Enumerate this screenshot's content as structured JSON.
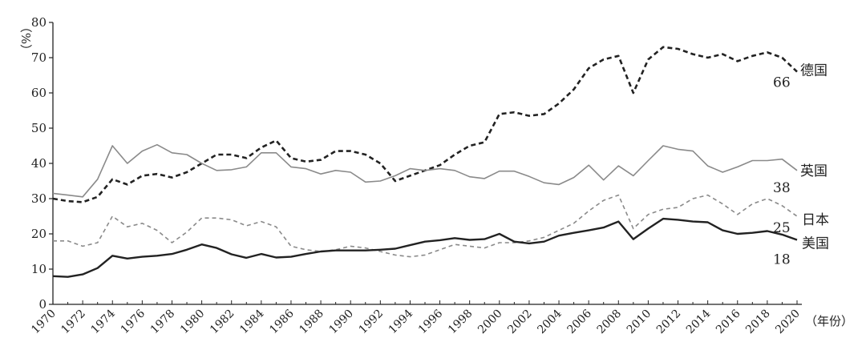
{
  "chart_data": {
    "type": "line",
    "title": "",
    "ylabel": "（%）",
    "xlabel": "（年份）",
    "ylim": [
      0,
      80
    ],
    "yticks": [
      0,
      10,
      20,
      30,
      40,
      50,
      60,
      70,
      80
    ],
    "x": [
      1970,
      1971,
      1972,
      1973,
      1974,
      1975,
      1976,
      1977,
      1978,
      1979,
      1980,
      1981,
      1982,
      1983,
      1984,
      1985,
      1986,
      1987,
      1988,
      1989,
      1990,
      1991,
      1992,
      1993,
      1994,
      1995,
      1996,
      1997,
      1998,
      1999,
      2000,
      2001,
      2002,
      2003,
      2004,
      2005,
      2006,
      2007,
      2008,
      2009,
      2010,
      2011,
      2012,
      2013,
      2014,
      2015,
      2016,
      2017,
      2018,
      2019,
      2020
    ],
    "xticks": [
      "1970",
      "1972",
      "1974",
      "1976",
      "1978",
      "1980",
      "1982",
      "1984",
      "1986",
      "1988",
      "1990",
      "1992",
      "1994",
      "1996",
      "1998",
      "2000",
      "2002",
      "2004",
      "2006",
      "2008",
      "2010",
      "2012",
      "2014",
      "2016",
      "2018",
      "2020"
    ],
    "grid": false,
    "legend": "none",
    "series": [
      {
        "name": "德国",
        "end_label": "66",
        "color": "#222222",
        "style": "dashed-bold",
        "values": [
          30,
          29.3,
          29,
          30.5,
          35.5,
          34,
          36.5,
          37,
          36,
          37.5,
          40,
          42.5,
          42.5,
          41.5,
          44.5,
          46.5,
          41.5,
          40.5,
          41,
          43.5,
          43.5,
          42.5,
          40,
          35,
          36.5,
          38,
          39.5,
          42.5,
          45,
          46,
          54,
          54.5,
          53.5,
          54,
          57,
          61,
          67,
          69.5,
          70.5,
          60,
          69.5,
          73,
          72.5,
          71,
          70,
          71,
          69,
          70.5,
          71.5,
          70,
          66
        ]
      },
      {
        "name": "英国",
        "end_label": "38",
        "color": "#8a8a8a",
        "style": "solid",
        "values": [
          31.5,
          31,
          30.5,
          35.5,
          45,
          40,
          43.5,
          45.3,
          43,
          42.5,
          40,
          38,
          38.2,
          39,
          43,
          43,
          39,
          38.5,
          37,
          38,
          37.5,
          34.7,
          35,
          36.5,
          38.5,
          38,
          38.5,
          38,
          36.2,
          35.7,
          37.8,
          37.8,
          36.3,
          34.5,
          34,
          36,
          39.5,
          35.3,
          39.3,
          36.5,
          40.8,
          45,
          44,
          43.5,
          39.3,
          37.5,
          39,
          40.8,
          40.8,
          41.2,
          38
        ]
      },
      {
        "name": "日本",
        "end_label": "25",
        "color": "#8a8a8a",
        "style": "dashed",
        "values": [
          18,
          18,
          16.5,
          17.5,
          25,
          22,
          23,
          21,
          17.5,
          20.5,
          24.5,
          24.5,
          24,
          22.3,
          23.5,
          22,
          16.5,
          15.5,
          15,
          15.5,
          16.5,
          16,
          15,
          14,
          13.5,
          14,
          15.5,
          17,
          16.5,
          16,
          17.5,
          17.5,
          18,
          19,
          21,
          23,
          26.5,
          29.5,
          31,
          21.5,
          25.5,
          27,
          27.5,
          30,
          31,
          28.5,
          25.5,
          28.5,
          30,
          28,
          25
        ]
      },
      {
        "name": "美国",
        "end_label": "18",
        "color": "#222222",
        "style": "solid-bold",
        "values": [
          8,
          7.8,
          8.5,
          10.3,
          13.8,
          13,
          13.5,
          13.8,
          14.3,
          15.5,
          17,
          16,
          14.2,
          13.2,
          14.3,
          13.3,
          13.5,
          14.3,
          15,
          15.3,
          15.3,
          15.3,
          15.5,
          15.8,
          16.8,
          17.8,
          18.2,
          18.8,
          18.3,
          18.5,
          20,
          17.8,
          17.3,
          17.8,
          19.5,
          20.3,
          21,
          21.8,
          23.5,
          18.5,
          21.5,
          24.3,
          24,
          23.5,
          23.3,
          21,
          20,
          20.3,
          20.8,
          19.8,
          18.3
        ]
      }
    ]
  }
}
